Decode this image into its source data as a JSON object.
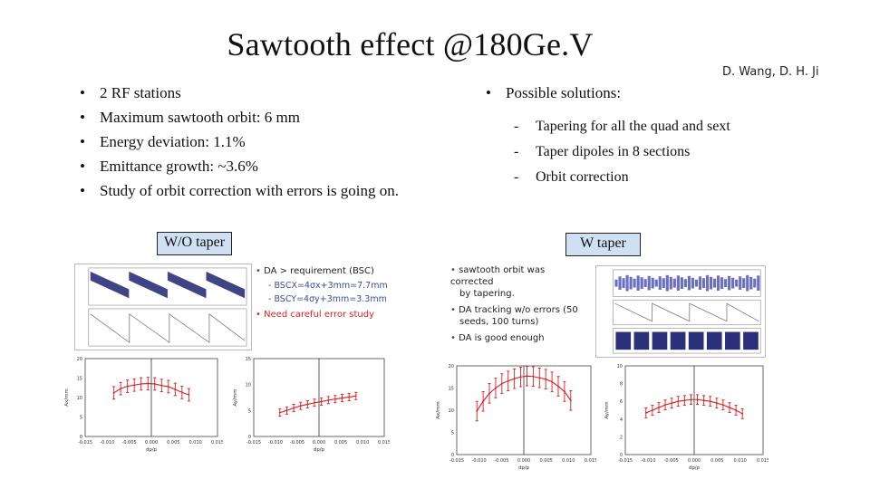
{
  "title": "Sawtooth effect @180Ge.V",
  "authors": "D. Wang, D. H. Ji",
  "left_bullets": [
    "2 RF stations",
    "Maximum sawtooth orbit: 6 mm",
    "Energy deviation: 1.1%",
    "Emittance growth: ~3.6%",
    "Study of orbit correction with errors is going on."
  ],
  "bullet_symbol": "•",
  "solutions": {
    "heading": "Possible solutions:",
    "items": [
      "Tapering for all the quad and sext",
      "Taper dipoles in 8 sections",
      "Orbit correction"
    ],
    "dash": "-"
  },
  "wo_taper": {
    "label": "W/O taper",
    "notes": {
      "main": "DA > requirement (BSC)",
      "sub1": "- BSCX=4σx+3mm=7.7mm",
      "sub2": "- BSCY=4σy+3mm=3.3mm",
      "red": "Need careful error study"
    },
    "chart_x": {
      "ticks": [
        "-0.015",
        "-0.010",
        "-0.005",
        "0.000",
        "0.005",
        "0.010",
        "0.015"
      ],
      "yticks": [
        "0",
        "5",
        "10",
        "15",
        "20"
      ],
      "xlabel": "dp/p",
      "ylabel": "Ax/mm",
      "points": [
        11.2,
        12.3,
        12.9,
        13.2,
        13.5,
        13.6,
        13.5,
        13.1,
        12.8,
        12.1,
        11.3,
        10.7
      ]
    },
    "chart_y": {
      "ticks": [
        "-0.015",
        "-0.010",
        "-0.005",
        "0.000",
        "0.005",
        "0.010",
        "0.015"
      ],
      "yticks": [
        "0",
        "5",
        "10",
        "15"
      ],
      "xlabel": "dp/p",
      "ylabel": "Ay/mm",
      "points": [
        4.6,
        5.0,
        5.5,
        5.9,
        6.2,
        6.5,
        6.7,
        7.0,
        7.2,
        7.4,
        7.6,
        7.8
      ]
    }
  },
  "w_taper": {
    "label": "W taper",
    "notes": {
      "l1": "sawtooth orbit was corrected",
      "l2": "by tapering.",
      "l3": "DA tracking w/o errors (50",
      "l4": "seeds, 100 turns)",
      "l5": "DA is good enough"
    },
    "chart_x": {
      "ticks": [
        "-0.015",
        "-0.010",
        "-0.005",
        "0.000",
        "0.005",
        "0.010",
        "0.015"
      ],
      "yticks": [
        "0",
        "5",
        "10",
        "15",
        "20"
      ],
      "xlabel": "dp/p",
      "ylabel": "Ax/mm",
      "points": [
        9.8,
        12.0,
        13.8,
        15.0,
        16.0,
        16.6,
        17.1,
        17.5,
        17.7,
        17.6,
        17.3,
        17.0,
        16.4,
        15.4,
        14.2,
        12.2
      ]
    },
    "chart_y": {
      "ticks": [
        "-0.015",
        "-0.010",
        "-0.005",
        "0.000",
        "0.005",
        "0.010",
        "0.015"
      ],
      "yticks": [
        "0",
        "2",
        "4",
        "6",
        "8",
        "10"
      ],
      "xlabel": "dp/p",
      "ylabel": "Ay/mm",
      "points": [
        4.7,
        5.0,
        5.3,
        5.6,
        5.8,
        6.0,
        6.1,
        6.2,
        6.2,
        6.1,
        6.0,
        5.8,
        5.6,
        5.3,
        5.0,
        4.6
      ]
    }
  }
}
